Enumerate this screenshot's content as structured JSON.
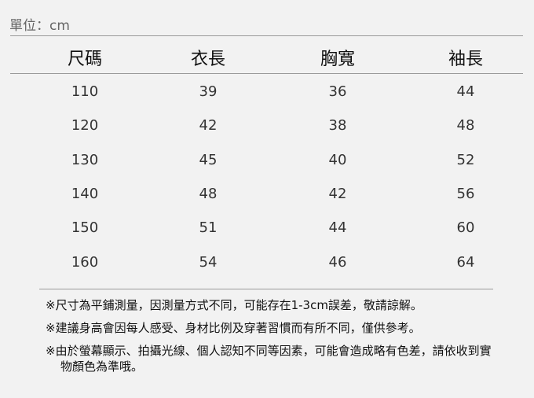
{
  "unit_label": "單位：cm",
  "table": {
    "headers": [
      "尺碼",
      "衣長",
      "胸寬",
      "袖長"
    ],
    "rows": [
      [
        "110",
        "39",
        "36",
        "44"
      ],
      [
        "120",
        "42",
        "38",
        "48"
      ],
      [
        "130",
        "45",
        "40",
        "52"
      ],
      [
        "140",
        "48",
        "42",
        "56"
      ],
      [
        "150",
        "51",
        "44",
        "60"
      ],
      [
        "160",
        "54",
        "46",
        "64"
      ]
    ]
  },
  "notes": [
    "※尺寸為平鋪測量，因測量方式不同，可能存在1-3cm誤差，敬請諒解。",
    "※建議身高會因每人感受、身材比例及穿著習慣而有所不同，僅供參考。",
    "※由於螢幕顯示、拍攝光線、個人認知不同等因素，可能會造成略有色差，請依收到實物顏色為準哦。"
  ]
}
